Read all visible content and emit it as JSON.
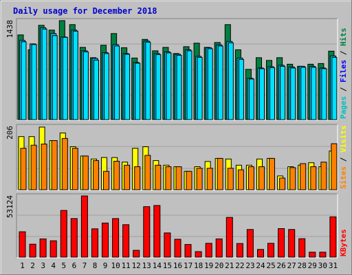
{
  "chart_data": {
    "type": "bar",
    "title": "Daily usage for December 2018",
    "x": [
      "1",
      "2",
      "3",
      "4",
      "5",
      "6",
      "7",
      "8",
      "9",
      "10",
      "11",
      "12",
      "13",
      "14",
      "15",
      "16",
      "17",
      "18",
      "19",
      "20",
      "21",
      "22",
      "23",
      "24",
      "25",
      "26",
      "27",
      "28",
      "29",
      "30",
      "31"
    ],
    "weekend_days": [
      "1",
      "2",
      "8",
      "9",
      "15",
      "16",
      "22",
      "23",
      "29",
      "30"
    ],
    "colors": {
      "hits": "#008040",
      "files": "#00c0ff",
      "pages": "#00e0ff",
      "visits": "#ffff00",
      "sites": "#ff8000",
      "kbytes": "#ff0000",
      "weekday_label": "#000000",
      "weekend_label": "#008040",
      "title": "#0000cc"
    },
    "panels": [
      {
        "name": "hits-files-pages",
        "ymax_label": "1438",
        "ymax": 1438,
        "legend": [
          {
            "text": "Pages",
            "color": "#00c0c0"
          },
          {
            "text": "Files",
            "color": "#0000ff"
          },
          {
            "text": "Hits",
            "color": "#008040"
          }
        ],
        "series": [
          {
            "name": "Hits",
            "values": [
              1230,
              1015,
              1370,
              1300,
              1438,
              1380,
              1050,
              900,
              1080,
              1250,
              1045,
              895,
              1165,
              1000,
              1050,
              960,
              1060,
              1110,
              1050,
              1120,
              1380,
              1015,
              730,
              900,
              860,
              900,
              805,
              775,
              805,
              815,
              995
            ]
          },
          {
            "name": "Files",
            "values": [
              1150,
              1100,
              1335,
              1250,
              1200,
              1300,
              1000,
              890,
              975,
              1090,
              960,
              830,
              1140,
              960,
              985,
              950,
              1015,
              920,
              1045,
              1085,
              1135,
              895,
              600,
              750,
              770,
              790,
              765,
              775,
              775,
              750,
              925
            ]
          },
          {
            "name": "Pages",
            "values": [
              1130,
              1090,
              1315,
              1220,
              1195,
              1285,
              985,
              865,
              960,
              1070,
              950,
              820,
              1125,
              945,
              970,
              935,
              1000,
              905,
              1030,
              1070,
              1115,
              875,
              590,
              740,
              755,
              775,
              750,
              760,
              760,
              740,
              905
            ]
          }
        ]
      },
      {
        "name": "visits-sites",
        "ymax_label": "206",
        "ymax": 206,
        "legend": [
          {
            "text": "Sites",
            "color": "#ff8000"
          },
          {
            "text": "Visits",
            "color": "#ffff00"
          }
        ],
        "series": [
          {
            "name": "Visits",
            "values": [
              173,
              173,
              204,
              160,
              185,
              140,
              110,
              100,
              105,
              105,
              90,
              135,
              140,
              95,
              80,
              75,
              60,
              75,
              92,
              102,
              100,
              80,
              80,
              100,
              102,
              45,
              75,
              80,
              88,
              75,
              126
            ]
          },
          {
            "name": "Sites",
            "values": [
              135,
              145,
              149,
              160,
              167,
              135,
              110,
              95,
              60,
              93,
              80,
              75,
              112,
              80,
              75,
              75,
              60,
              70,
              70,
              102,
              70,
              65,
              75,
              75,
              102,
              38,
              72,
              85,
              75,
              90,
              150
            ]
          }
        ]
      },
      {
        "name": "kbytes",
        "ymax_label": "53124",
        "ymax": 53124,
        "legend": [
          {
            "text": "KBytes",
            "color": "#ff0000"
          }
        ],
        "series": [
          {
            "name": "KBytes",
            "values": [
              22000,
              11200,
              15800,
              14200,
              40500,
              33500,
              53124,
              24600,
              29600,
              33500,
              28200,
              5900,
              43800,
              44800,
              21000,
              15500,
              11000,
              4800,
              12000,
              15800,
              34500,
              11800,
              24000,
              6700,
              12000,
              24800,
              24000,
              16000,
              4300,
              4300,
              35000
            ]
          }
        ]
      }
    ]
  }
}
